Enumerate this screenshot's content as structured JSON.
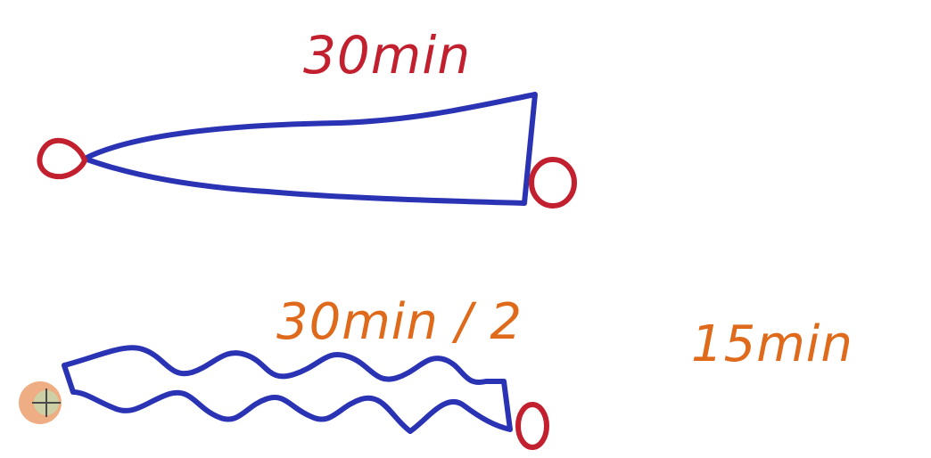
{
  "labels": {
    "top_duration": "30min",
    "bottom_formula": "30min / 2",
    "bottom_result": "15min"
  },
  "colors": {
    "label_red": "#c2202f",
    "label_orange": "#e06a1b",
    "path_blue": "#2b33b5",
    "endpoint_red": "#c2202f",
    "cursor_orange": "#e06a1b"
  },
  "icons": {
    "cursor": "crosshair-cursor-icon"
  }
}
